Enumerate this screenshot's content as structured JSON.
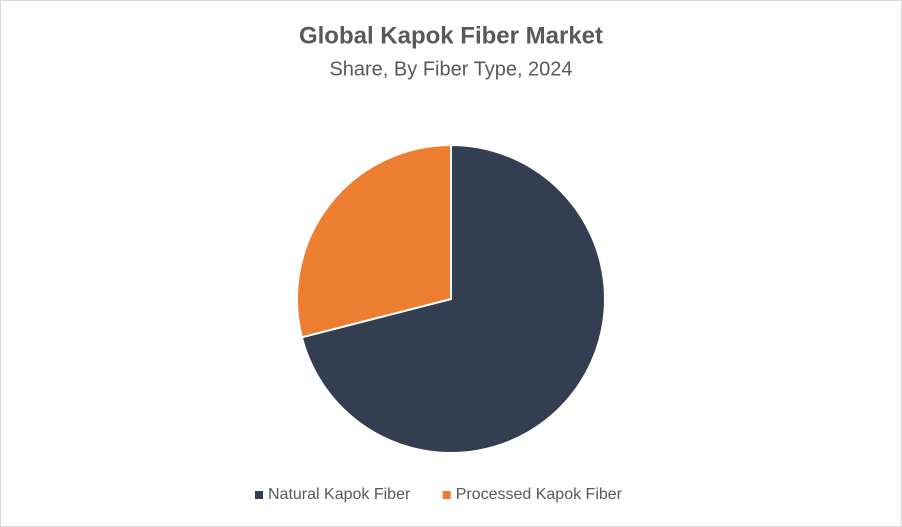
{
  "chart_data": {
    "type": "pie",
    "title": "Global Kapok Fiber Market",
    "subtitle": "Share, By Fiber Type, 2024",
    "categories": [
      "Natural Kapok Fiber",
      "Processed Kapok Fiber"
    ],
    "values": [
      71,
      29
    ],
    "colors": [
      "#333f50",
      "#ed7d31"
    ],
    "legend": "bottom"
  }
}
